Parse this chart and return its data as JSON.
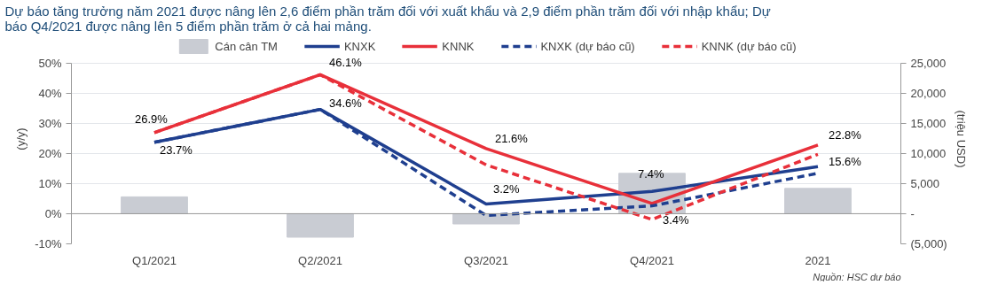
{
  "chart_data": {
    "type": "line",
    "title": "Dự báo tăng trưởng năm 2021 được nâng lên 2,6 điểm phần trăm đối với xuất khẩu và 2,9 điểm phần trăm đối với nhập khẩu; Dự báo Q4/2021 được nâng lên 5 điểm phần trăm ở cả hai mảng.",
    "categories": [
      "Q1/2021",
      "Q2/2021",
      "Q3/2021",
      "Q4/2021",
      "2021"
    ],
    "ylabel": "(y/y)",
    "y2label": "(triệu USD)",
    "ylim": [
      -10,
      50
    ],
    "yticks": [
      {
        "value": -10,
        "label": "-10%"
      },
      {
        "value": 0,
        "label": "0%"
      },
      {
        "value": 10,
        "label": "10%"
      },
      {
        "value": 20,
        "label": "20%"
      },
      {
        "value": 30,
        "label": "30%"
      },
      {
        "value": 40,
        "label": "40%"
      },
      {
        "value": 50,
        "label": "50%"
      }
    ],
    "y2lim": [
      -5000,
      25000
    ],
    "y2ticks": [
      {
        "value": -5000,
        "label": "(5,000)"
      },
      {
        "value": 0,
        "label": "-"
      },
      {
        "value": 5000,
        "label": "5,000"
      },
      {
        "value": 10000,
        "label": "10,000"
      },
      {
        "value": 15000,
        "label": "15,000"
      },
      {
        "value": 20000,
        "label": "20,000"
      },
      {
        "value": 25000,
        "label": "25,000"
      }
    ],
    "grid": "y",
    "legend": "top",
    "series": [
      {
        "name": "Cán cân TM",
        "type": "bar",
        "axis": "y2",
        "color": "#c9ccd3",
        "values": [
          2800,
          -3900,
          -1700,
          6700,
          4200
        ]
      },
      {
        "name": "KNXK",
        "color": "#1f3f8f",
        "line_style": "solid",
        "values": [
          23.7,
          34.6,
          3.2,
          7.4,
          15.6
        ],
        "value_labels": [
          "23.7%",
          "34.6%",
          "3.2%",
          "7.4%",
          "15.6%"
        ]
      },
      {
        "name": "KNNK",
        "color": "#e8303a",
        "line_style": "solid",
        "values": [
          26.9,
          46.1,
          21.6,
          3.4,
          22.8
        ],
        "value_labels": [
          "26.9%",
          "46.1%",
          "21.6%",
          "3.4%",
          "22.8%"
        ]
      },
      {
        "name": "KNXK (dự báo cũ)",
        "color": "#1f3f8f",
        "line_style": "dashed",
        "values": [
          23.7,
          34.6,
          -0.6,
          2.6,
          13.4
        ]
      },
      {
        "name": "KNNK (dự báo cũ)",
        "color": "#e8303a",
        "line_style": "dashed",
        "values": [
          26.9,
          46.1,
          16.2,
          -1.9,
          19.7
        ]
      }
    ],
    "annotations": [
      "Nguồn: HSC dự báo"
    ]
  }
}
